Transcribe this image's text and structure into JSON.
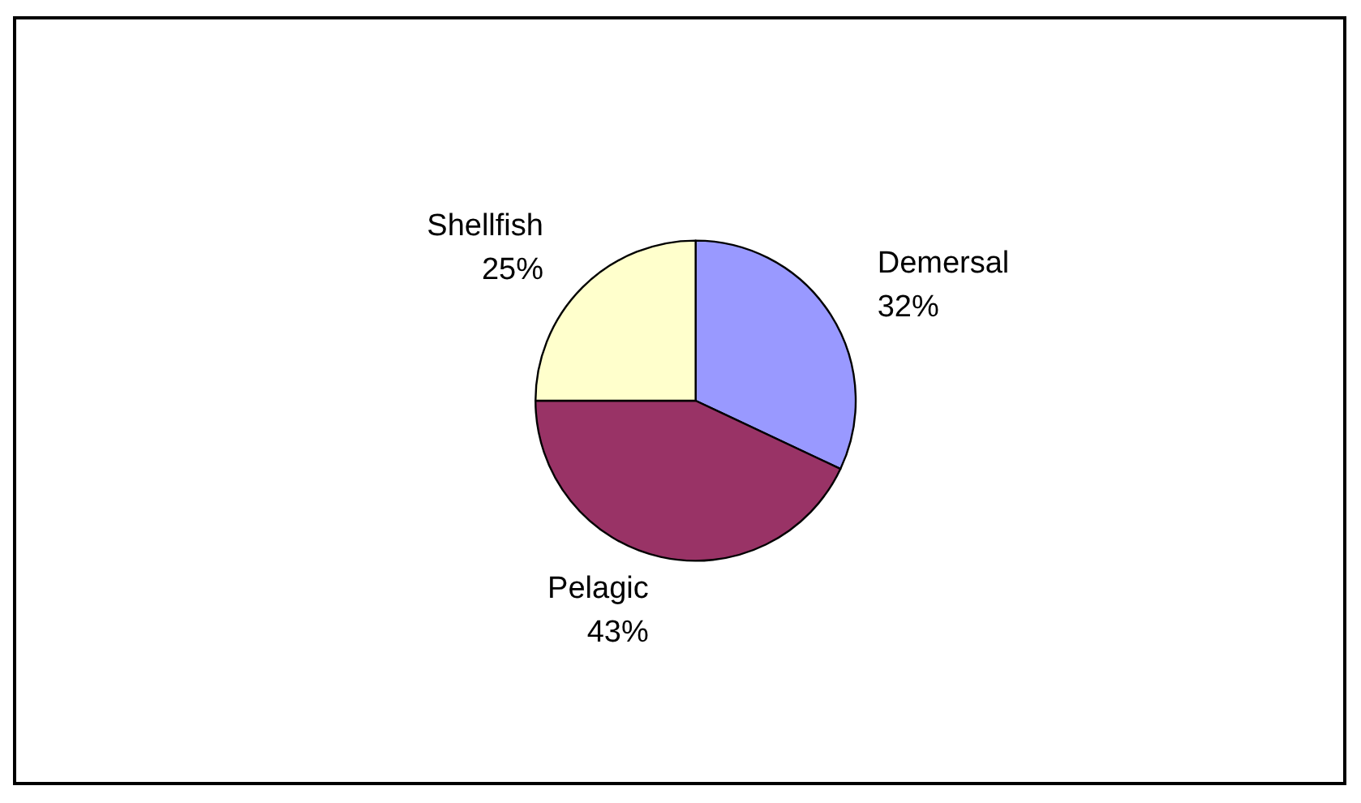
{
  "chart_data": {
    "type": "pie",
    "categories": [
      "Demersal",
      "Pelagic",
      "Shellfish"
    ],
    "values": [
      32,
      43,
      25
    ],
    "value_labels": [
      "32%",
      "43%",
      "25%"
    ],
    "colors": [
      "#9999ff",
      "#993366",
      "#ffffcc"
    ],
    "legend": false
  }
}
